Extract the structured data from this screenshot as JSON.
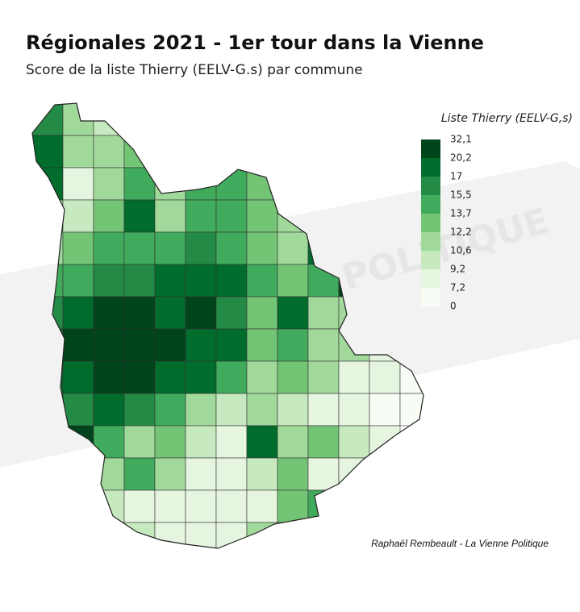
{
  "title": "Régionales 2021 - 1er tour dans la Vienne",
  "subtitle": "Score de la liste Thierry (EELV-G.s) par commune",
  "watermark": "LA VIENNE POLITIQUE",
  "credit": "Raphaël Rembeault - La Vienne Politique",
  "legend": {
    "title": "Liste Thierry (EELV-G,s)",
    "breaks": [
      {
        "value": 32.1,
        "label": "32,1"
      },
      {
        "value": 20.2,
        "label": "20,2"
      },
      17,
      {
        "value": 15.5,
        "label": "15,5"
      },
      {
        "value": 13.7,
        "label": "13,7"
      },
      {
        "value": 12.2,
        "label": "12,2"
      },
      {
        "value": 10.6,
        "label": "10,6"
      },
      {
        "value": 9.2,
        "label": "9,2"
      },
      {
        "value": 7.2,
        "label": "7,2"
      },
      0
    ],
    "colors": [
      "#00441b",
      "#006d2c",
      "#238b45",
      "#41ab5d",
      "#74c476",
      "#a1d99b",
      "#c7e9c0",
      "#e5f5e0",
      "#f7fcf5"
    ]
  },
  "map": {
    "cells": [
      [
        16,
        12,
        10,
        null,
        null,
        null,
        null,
        null,
        null,
        null,
        null,
        null,
        null
      ],
      [
        20,
        11,
        12,
        13,
        null,
        null,
        null,
        null,
        null,
        null,
        null,
        null,
        null
      ],
      [
        17,
        9,
        12,
        14,
        11,
        15,
        14,
        13,
        null,
        null,
        null,
        null,
        null
      ],
      [
        12,
        10,
        13,
        20,
        12,
        14,
        15,
        13,
        12,
        null,
        null,
        null,
        null
      ],
      [
        12,
        13,
        15,
        14,
        15,
        16,
        15,
        13,
        12,
        18,
        null,
        null,
        null
      ],
      [
        14,
        15,
        16,
        16,
        18,
        20,
        17,
        14,
        13,
        15,
        22,
        null,
        null
      ],
      [
        16,
        20,
        22,
        24,
        20,
        22,
        16,
        13,
        18,
        12,
        12,
        null,
        null
      ],
      [
        17,
        22,
        24,
        25,
        22,
        20,
        18,
        13,
        14,
        12,
        11,
        9,
        null
      ],
      [
        18,
        20,
        22,
        24,
        20,
        17,
        14,
        12,
        13,
        11,
        9,
        8,
        7
      ],
      [
        17,
        16,
        18,
        16,
        15,
        12,
        10,
        12,
        10,
        9,
        8,
        7,
        6
      ],
      [
        null,
        22,
        14,
        12,
        13,
        10,
        9,
        18,
        11,
        13,
        10,
        8,
        null
      ],
      [
        null,
        null,
        11,
        15,
        12,
        9,
        8,
        10,
        13,
        9,
        8,
        null,
        null
      ],
      [
        null,
        null,
        10,
        9,
        8,
        9,
        8,
        9,
        13,
        15,
        null,
        null,
        null
      ],
      [
        null,
        null,
        null,
        10,
        9,
        8,
        9,
        12,
        null,
        null,
        null,
        null,
        null
      ]
    ]
  }
}
